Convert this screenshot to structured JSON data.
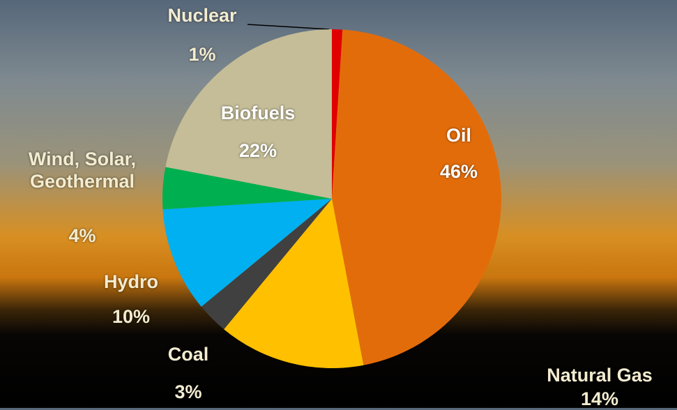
{
  "chart_data": {
    "type": "pie",
    "categories": [
      "Nuclear",
      "Oil",
      "Natural Gas",
      "Coal",
      "Hydro",
      "Wind, Solar, Geothermal",
      "Biofuels"
    ],
    "values": [
      1,
      46,
      14,
      3,
      10,
      4,
      22
    ],
    "value_labels": [
      "1%",
      "46%",
      "14%",
      "3%",
      "10%",
      "4%",
      "22%"
    ],
    "colors": [
      "#e00000",
      "#e36c0a",
      "#ffc000",
      "#404040",
      "#00b0f0",
      "#00b050",
      "#c4bd97"
    ]
  }
}
